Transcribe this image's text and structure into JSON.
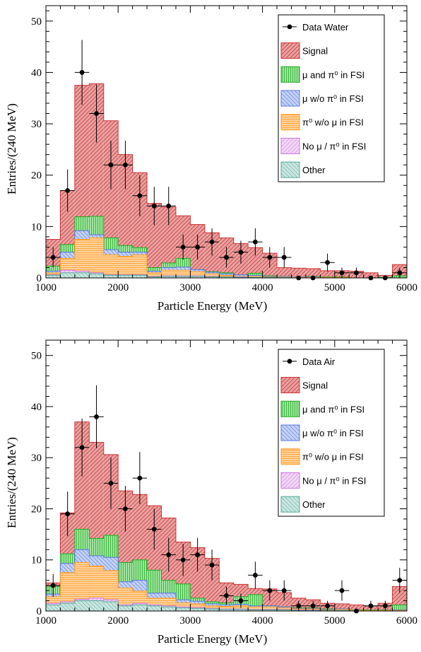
{
  "colors": {
    "signal": "#cc3333",
    "signal_fill": "#e8a2a2",
    "mu_pi0": "#22aa22",
    "mu_pi0_fill": "#9fe39f",
    "mu_wo_pi0": "#5577dd",
    "mu_wo_pi0_fill": "#c4d2f6",
    "pi0_wo_mu": "#ff9922",
    "pi0_wo_mu_fill": "#ffd29b",
    "no_mu_pi0": "#cc77dd",
    "no_mu_pi0_fill": "#f1d6f6",
    "other": "#55aa99",
    "other_fill": "#c9e5df",
    "data": "#000000"
  },
  "chart_data": [
    {
      "type": "bar",
      "stacked": true,
      "xlabel": "Particle Energy (MeV)",
      "ylabel": "Entries/(240 MeV)",
      "xlim": [
        1000,
        6000
      ],
      "ylim": [
        0,
        53
      ],
      "xticks": [
        "1000",
        "2000",
        "3000",
        "4000",
        "5000",
        "6000"
      ],
      "yticks": [
        "0",
        "10",
        "20",
        "30",
        "40",
        "50"
      ],
      "legend_position": "top-right",
      "legend": [
        "Data Water",
        "Signal",
        "μ and π⁰ in FSI",
        "μ w/o π⁰ in FSI",
        "π⁰ w/o μ in FSI",
        "No μ / π⁰ in FSI",
        "Other"
      ],
      "bin_edges": [
        1000,
        1200,
        1400,
        1600,
        1800,
        2000,
        2200,
        2400,
        2600,
        2800,
        3000,
        3200,
        3400,
        3600,
        3800,
        4000,
        4200,
        4400,
        4600,
        4800,
        5000,
        5200,
        5400,
        5600,
        5800,
        6000
      ],
      "stack_cumulative": {
        "other": [
          0.5,
          1,
          1,
          0.8,
          0.5,
          0.5,
          0.5,
          0.2,
          0.3,
          0.3,
          0.3,
          0.2,
          0.2,
          0.1,
          0.1,
          0.1,
          0.1,
          0,
          0,
          0,
          0,
          0,
          0,
          0,
          0
        ],
        "no_mu_pi0": [
          0.6,
          1.5,
          1.3,
          1,
          0.6,
          0.6,
          0.6,
          0.3,
          0.4,
          0.4,
          0.4,
          0.3,
          0.2,
          0.2,
          0.1,
          0.1,
          0.1,
          0,
          0,
          0,
          0,
          0,
          0,
          0,
          0
        ],
        "pi0_wo_mu": [
          1,
          3.8,
          7.5,
          7.8,
          4.5,
          4.2,
          4.5,
          1,
          1.5,
          1.5,
          1.2,
          0.8,
          0.5,
          0.3,
          0.3,
          0.2,
          0.2,
          0.1,
          0.1,
          0.1,
          0.1,
          0,
          0,
          0,
          0
        ],
        "mu_wo_pi0": [
          1.3,
          5,
          9.2,
          8.4,
          5.5,
          5,
          5,
          1.3,
          2,
          2.1,
          1.6,
          1.1,
          0.8,
          0.6,
          0.5,
          0.3,
          0.3,
          0.2,
          0.2,
          0.1,
          0.1,
          0,
          0,
          0,
          0
        ],
        "mu_pi0": [
          2.3,
          6.5,
          11.9,
          12,
          7.8,
          6.3,
          5.9,
          2,
          2.9,
          3.8,
          1.6,
          1.2,
          1,
          0.6,
          0.9,
          0.4,
          0.3,
          0.2,
          0.3,
          0.2,
          0.2,
          0,
          0,
          0.1,
          0.4
        ],
        "signal": [
          7.5,
          17,
          37.5,
          37.8,
          30.6,
          24,
          20.5,
          14.5,
          13.8,
          12.1,
          10.4,
          8.8,
          7.8,
          6.7,
          5.9,
          4.8,
          2,
          1.9,
          1.8,
          1.4,
          1.4,
          1.3,
          1,
          0.5,
          2.6
        ]
      },
      "data_points": {
        "x": [
          1100,
          1300,
          1500,
          1700,
          1900,
          2100,
          2300,
          2500,
          2700,
          2900,
          3100,
          3300,
          3500,
          3700,
          3900,
          4100,
          4300,
          4500,
          4700,
          4900,
          5100,
          5300,
          5500,
          5700,
          5900
        ],
        "y": [
          4,
          17,
          40,
          32,
          22,
          22,
          16,
          14,
          14,
          6,
          6,
          7,
          4,
          5,
          7,
          4,
          4,
          0,
          0,
          3,
          1,
          1,
          0,
          0,
          1
        ]
      }
    },
    {
      "type": "bar",
      "stacked": true,
      "xlabel": "Particle Energy (MeV)",
      "ylabel": "Entries/(240 MeV)",
      "xlim": [
        1000,
        6000
      ],
      "ylim": [
        0,
        53
      ],
      "xticks": [
        "1000",
        "2000",
        "3000",
        "4000",
        "5000",
        "6000"
      ],
      "yticks": [
        "0",
        "10",
        "20",
        "30",
        "40",
        "50"
      ],
      "legend_position": "top-right",
      "legend": [
        "Data Air",
        "Signal",
        "μ and π⁰ in FSI",
        "μ w/o π⁰ in FSI",
        "π⁰ w/o μ in FSI",
        "No μ / π⁰ in FSI",
        "Other"
      ],
      "bin_edges": [
        1000,
        1200,
        1400,
        1600,
        1800,
        2000,
        2200,
        2400,
        2600,
        2800,
        3000,
        3200,
        3400,
        3600,
        3800,
        4000,
        4200,
        4400,
        4600,
        4800,
        5000,
        5200,
        5400,
        5600,
        5800,
        6000
      ],
      "stack_cumulative": {
        "other": [
          1.2,
          1.5,
          2,
          2,
          1.8,
          1,
          1.2,
          1,
          0.8,
          0.6,
          0.5,
          0.4,
          0.3,
          0.3,
          0.2,
          0.2,
          0.2,
          0.1,
          0.1,
          0.1,
          0.1,
          0,
          0,
          0,
          0
        ],
        "no_mu_pi0": [
          1.5,
          1.8,
          2.3,
          2.5,
          2.2,
          1.2,
          1.5,
          1.2,
          1,
          0.8,
          0.7,
          0.5,
          0.4,
          0.4,
          0.3,
          0.3,
          0.3,
          0.2,
          0.2,
          0.1,
          0.1,
          0,
          0,
          0,
          0
        ],
        "pi0_wo_mu": [
          2.8,
          7.5,
          9.5,
          8.8,
          7.9,
          4.5,
          3.9,
          2.5,
          2.5,
          1.6,
          1.4,
          1,
          0.9,
          1,
          0.8,
          0.8,
          0.6,
          0.4,
          0.4,
          0.2,
          0.3,
          0.1,
          0.1,
          0.1,
          0.1
        ],
        "mu_wo_pi0": [
          3.3,
          9.3,
          12,
          10.8,
          10.5,
          5.7,
          6,
          3.5,
          3.5,
          2.2,
          1.9,
          1.4,
          1.2,
          1.3,
          1,
          1,
          0.8,
          0.5,
          0.5,
          0.3,
          0.4,
          0.1,
          0.1,
          0.1,
          0.2
        ],
        "mu_pi0": [
          4.8,
          11.2,
          16,
          14.2,
          14.8,
          9.5,
          10,
          8,
          6,
          5.3,
          2.5,
          1.8,
          1.6,
          2.8,
          3.2,
          1,
          0.8,
          0.6,
          0.6,
          0.4,
          0.4,
          0.2,
          0.2,
          0.2,
          1.2
        ],
        "signal": [
          5.5,
          19.2,
          37,
          33,
          30.6,
          23.5,
          22.8,
          20.6,
          18.2,
          13.5,
          12.4,
          10.3,
          5.5,
          5.2,
          4.4,
          4.3,
          3.6,
          2.5,
          2.2,
          1.5,
          1.4,
          1.2,
          1,
          1.5,
          4.8
        ]
      },
      "data_points": {
        "x": [
          1100,
          1300,
          1500,
          1700,
          1900,
          2100,
          2300,
          2500,
          2700,
          2900,
          3100,
          3300,
          3500,
          3700,
          3900,
          4100,
          4300,
          4500,
          4700,
          4900,
          5100,
          5300,
          5500,
          5700,
          5900
        ],
        "y": [
          5,
          19,
          32,
          38,
          25,
          20,
          26,
          16,
          11,
          10,
          11,
          9,
          3,
          2,
          7,
          4,
          4,
          1,
          1,
          1,
          4,
          0,
          1,
          1,
          6
        ]
      }
    }
  ]
}
